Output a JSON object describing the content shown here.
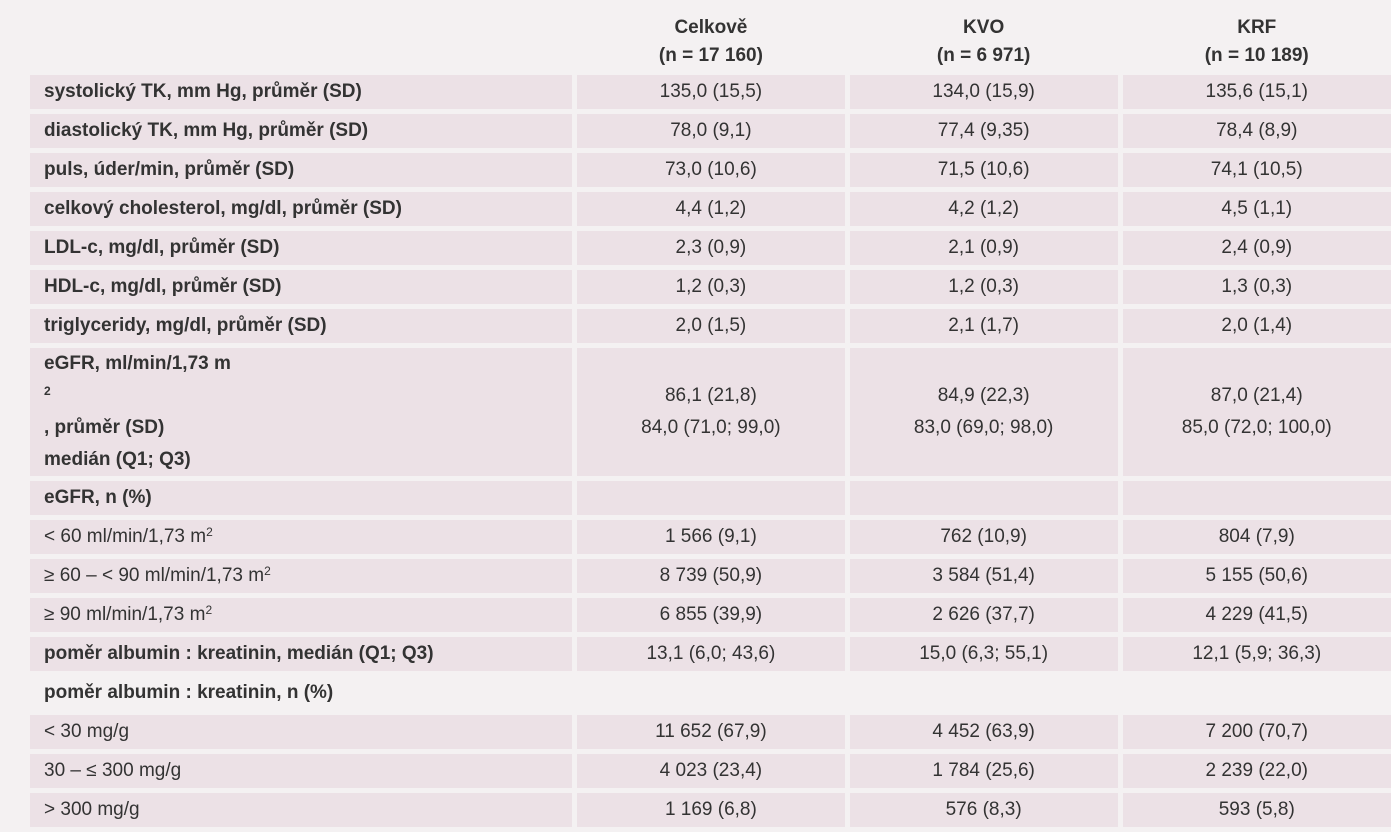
{
  "columns": [
    {
      "name": "Celkově",
      "n": "(n = 17 160)"
    },
    {
      "name": "KVO",
      "n": "(n = 6 971)"
    },
    {
      "name": "KRF",
      "n": "(n = 10 189)"
    }
  ],
  "rows": [
    {
      "label": "systolický TK, mm Hg, průměr (SD)",
      "values": [
        "135,0 (15,5)",
        "134,0 (15,9)",
        "135,6 (15,1)"
      ]
    },
    {
      "label": "diastolický TK, mm Hg, průměr (SD)",
      "values": [
        "78,0 (9,1)",
        "77,4 (9,35)",
        "78,4 (8,9)"
      ]
    },
    {
      "label": "puls, úder/min, průměr (SD)",
      "values": [
        "73,0 (10,6)",
        "71,5 (10,6)",
        "74,1 (10,5)"
      ]
    },
    {
      "label": "celkový cholesterol, mg/dl, průměr (SD)",
      "values": [
        "4,4 (1,2)",
        "4,2 (1,2)",
        "4,5 (1,1)"
      ]
    },
    {
      "label": "LDL-c, mg/dl, průměr (SD)",
      "values": [
        "2,3 (0,9)",
        "2,1 (0,9)",
        "2,4 (0,9)"
      ]
    },
    {
      "label": "HDL-c, mg/dl, průměr (SD)",
      "values": [
        "1,2 (0,3)",
        "1,2 (0,3)",
        "1,3 (0,3)"
      ]
    },
    {
      "label": "triglyceridy, mg/dl, průměr (SD)",
      "values": [
        "2,0 (1,5)",
        "2,1 (1,7)",
        "2,0 (1,4)"
      ]
    },
    {
      "label": "eGFR, ml/min/1,73 m",
      "sup": "2",
      "label_suffix": ", průměr (SD)",
      "label2": "medián (Q1; Q3)",
      "values": [
        "86,1 (21,8)",
        "84,9 (22,3)",
        "87,0 (21,4)"
      ],
      "values2": [
        "84,0 (71,0; 99,0)",
        "83,0 (69,0; 98,0)",
        "85,0 (72,0; 100,0)"
      ]
    },
    {
      "label": "eGFR, n (%)",
      "values": [
        "",
        "",
        ""
      ]
    },
    {
      "label": "< 60 ml/min/1,73 m",
      "sup": "2",
      "values": [
        "1 566 (9,1)",
        "762 (10,9)",
        "804 (7,9)"
      ]
    },
    {
      "label": "≥ 60 – < 90 ml/min/1,73 m",
      "sup": "2",
      "values": [
        "8 739 (50,9)",
        "3 584 (51,4)",
        "5 155 (50,6)"
      ]
    },
    {
      "label": "≥ 90 ml/min/1,73 m",
      "sup": "2",
      "values": [
        "6 855 (39,9)",
        "2 626 (37,7)",
        "4 229 (41,5)"
      ]
    },
    {
      "label": "poměr albumin : kreatinin, medián (Q1; Q3)",
      "values": [
        "13,1 (6,0; 43,6)",
        "15,0 (6,3; 55,1)",
        "12,1 (5,9; 36,3)"
      ]
    },
    {
      "label": "poměr albumin : kreatinin, n (%)",
      "values": [
        "",
        "",
        ""
      ]
    },
    {
      "label": "< 30 mg/g",
      "values": [
        "11 652 (67,9)",
        "4 452 (63,9)",
        "7 200 (70,7)"
      ]
    },
    {
      "label": "30 – ≤ 300 mg/g",
      "values": [
        "4 023 (23,4)",
        "1 784 (25,6)",
        "2 239 (22,0)"
      ]
    },
    {
      "label": "> 300 mg/g",
      "values": [
        "1 169 (6,8)",
        "576 (8,3)",
        "593 (5,8)"
      ]
    }
  ]
}
